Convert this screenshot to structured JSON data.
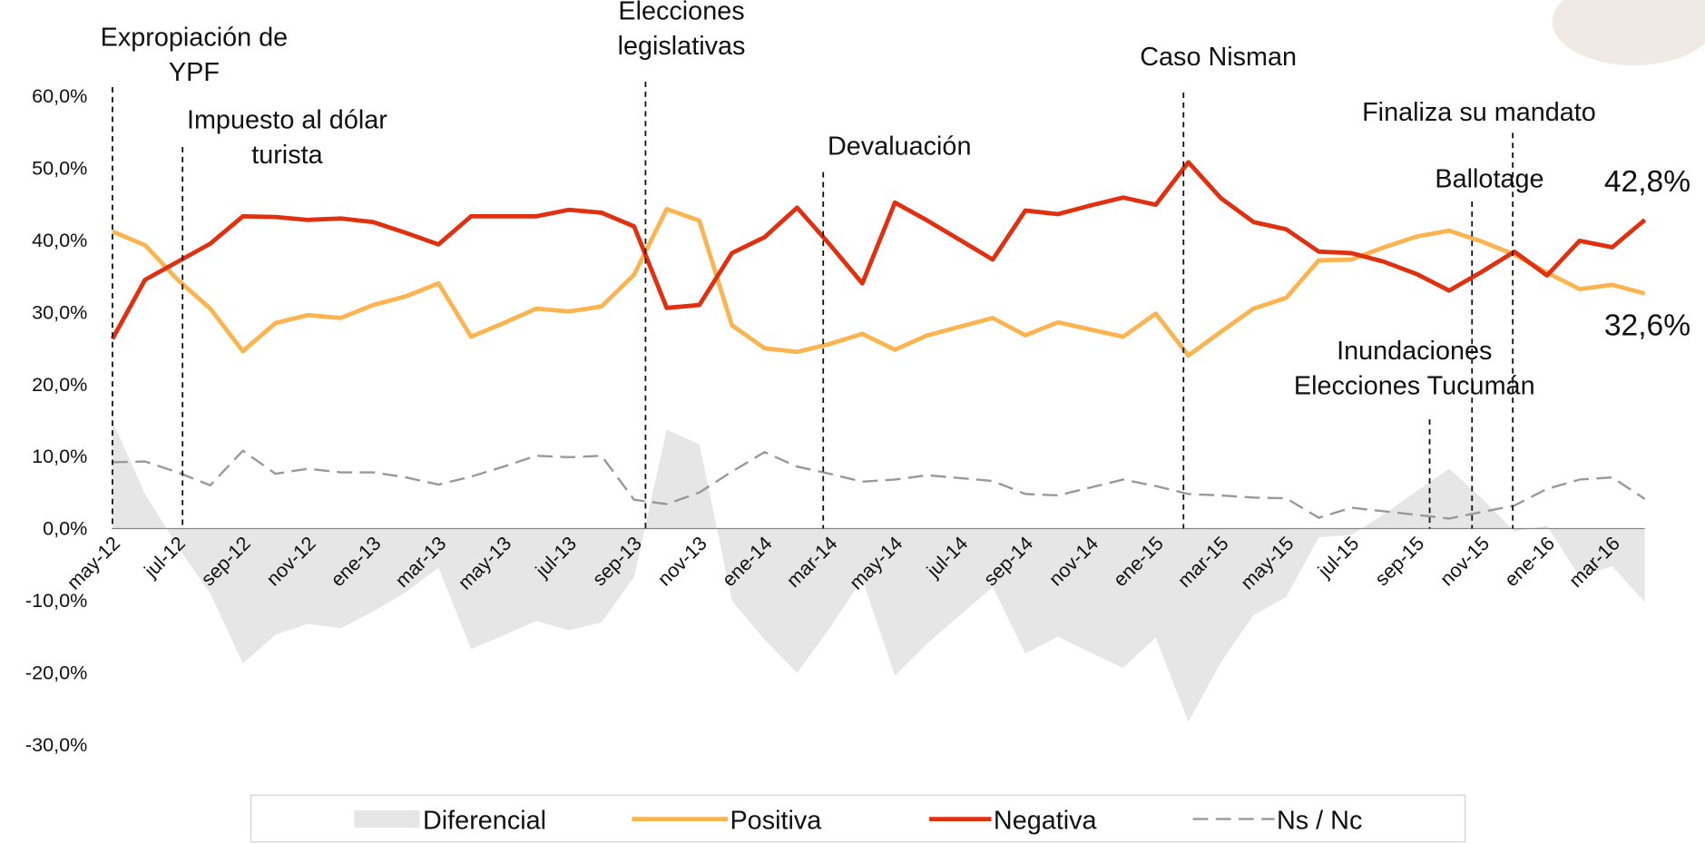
{
  "chart_data": {
    "type": "line",
    "categories": [
      "may-12",
      null,
      "jul-12",
      null,
      "sep-12",
      null,
      "nov-12",
      null,
      "ene-13",
      null,
      "mar-13",
      null,
      "may-13",
      null,
      "jul-13",
      null,
      "sep-13",
      null,
      "nov-13",
      null,
      "ene-14",
      null,
      "mar-14",
      null,
      "may-14",
      null,
      "jul-14",
      null,
      "sep-14",
      null,
      "nov-14",
      null,
      "ene-15",
      null,
      "mar-15",
      null,
      "may-15",
      null,
      "jul-15",
      null,
      "sep-15",
      null,
      "nov-15",
      null,
      "ene-16",
      null,
      "mar-16",
      null
    ],
    "ylim": [
      -30,
      60
    ],
    "yticks": [
      {
        "value": -30,
        "label": "-30,0%"
      },
      {
        "value": -20,
        "label": "-20,0%"
      },
      {
        "value": -10,
        "label": "-10,0%"
      },
      {
        "value": 0,
        "label": "0,0%"
      },
      {
        "value": 10,
        "label": "10,0%"
      },
      {
        "value": 20,
        "label": "20,0%"
      },
      {
        "value": 30,
        "label": "30,0%"
      },
      {
        "value": 40,
        "label": "40,0%"
      },
      {
        "value": 50,
        "label": "50,0%"
      },
      {
        "value": 60,
        "label": "60,0%"
      }
    ],
    "series": [
      {
        "name": "Diferencial",
        "kind": "area",
        "color": "#e6e6e6",
        "values": [
          14.9,
          4.8,
          -2.5,
          -9,
          -18.7,
          -14.7,
          -13.2,
          -13.8,
          -11.5,
          -8.8,
          -5.4,
          -16.7,
          -14.8,
          -12.8,
          -14.1,
          -13,
          -6.7,
          13.7,
          11.7,
          -10,
          -15.4,
          -20,
          -13.8,
          -7,
          -20.4,
          -15.9,
          -12,
          -8.1,
          -17.3,
          -15,
          -17.2,
          -19.3,
          -15.1,
          -26.8,
          -18.5,
          -12,
          -9.5,
          -1.2,
          -0.9,
          2,
          5.2,
          8.3,
          4.2,
          -0.4,
          0.4,
          -6.7,
          -5.2,
          -10.2
        ]
      },
      {
        "name": "Positiva",
        "kind": "line",
        "color": "#fbb450",
        "values": [
          41.2,
          39.3,
          34.5,
          30.5,
          24.6,
          28.5,
          29.6,
          29.2,
          31,
          32.2,
          34,
          26.6,
          28.5,
          30.5,
          30.1,
          30.8,
          35.2,
          44.3,
          42.7,
          28.2,
          25,
          24.5,
          25.6,
          27,
          24.8,
          26.8,
          28,
          29.2,
          26.8,
          28.6,
          27.6,
          26.6,
          29.8,
          24,
          27.3,
          30.5,
          32,
          37.2,
          37.3,
          39,
          40.5,
          41.3,
          39.8,
          38,
          35.5,
          33.2,
          33.8,
          32.6
        ],
        "value_labels": [
          null,
          null,
          null,
          null,
          null,
          null,
          null,
          null,
          null,
          null,
          null,
          null,
          null,
          null,
          null,
          null,
          null,
          null,
          null,
          null,
          null,
          null,
          null,
          null,
          null,
          null,
          null,
          null,
          null,
          null,
          null,
          null,
          null,
          null,
          null,
          null,
          null,
          null,
          null,
          null,
          null,
          null,
          null,
          null,
          null,
          null,
          null,
          "32,6%"
        ]
      },
      {
        "name": "Negativa",
        "kind": "line",
        "color": "#e03010",
        "values": [
          26.3,
          34.5,
          37,
          39.5,
          43.3,
          43.2,
          42.8,
          43,
          42.5,
          41,
          39.4,
          43.3,
          43.3,
          43.3,
          44.2,
          43.8,
          41.9,
          30.6,
          31,
          38.2,
          40.4,
          44.5,
          39.4,
          34,
          45.2,
          42.7,
          40,
          37.3,
          44.1,
          43.6,
          44.8,
          45.9,
          44.9,
          50.8,
          45.8,
          42.5,
          41.5,
          38.4,
          38.2,
          37,
          35.3,
          33,
          35.6,
          38.4,
          35.1,
          39.9,
          39,
          42.8
        ],
        "value_labels": [
          null,
          null,
          null,
          null,
          null,
          null,
          null,
          null,
          null,
          null,
          null,
          null,
          null,
          null,
          null,
          null,
          null,
          null,
          null,
          null,
          null,
          null,
          null,
          null,
          null,
          null,
          null,
          null,
          null,
          null,
          null,
          null,
          null,
          null,
          null,
          null,
          null,
          null,
          null,
          null,
          null,
          null,
          null,
          null,
          null,
          null,
          null,
          "42,8%"
        ]
      },
      {
        "name": "Ns / Nc",
        "kind": "dashed",
        "color": "#999999",
        "values": [
          9.2,
          9.3,
          7.8,
          6,
          10.8,
          7.6,
          8.3,
          7.8,
          7.8,
          7.1,
          6.1,
          7.2,
          8.6,
          10.1,
          9.9,
          10.1,
          4,
          3.4,
          5,
          7.9,
          10.6,
          8.6,
          7.6,
          6.5,
          6.8,
          7.4,
          7,
          6.6,
          4.8,
          4.6,
          5.7,
          6.8,
          5.9,
          4.8,
          4.6,
          4.3,
          4.2,
          1.5,
          2.9,
          2.4,
          1.9,
          1.4,
          2.3,
          3.2,
          5.5,
          6.8,
          7.1,
          4.1
        ]
      }
    ],
    "annotations": [
      {
        "text": [
          "Expropiación de",
          "YPF"
        ],
        "x": 0
      },
      {
        "text": [
          "Impuesto al dólar",
          "turista"
        ],
        "x": 2.15
      },
      {
        "text": [
          "Elecciones",
          "legislativas"
        ],
        "x": 16.35
      },
      {
        "text": [
          "Devaluación"
        ],
        "x": 21.8
      },
      {
        "text": [
          "Caso Nisman"
        ],
        "x": 32.85
      },
      {
        "text": [
          "Finaliza su mandato"
        ],
        "x": 42.95
      },
      {
        "text": [
          "Ballotage"
        ],
        "x": 41.7
      },
      {
        "text": [
          "Inundaciones",
          "Elecciones Tucumán"
        ],
        "x": 40.4
      }
    ]
  }
}
